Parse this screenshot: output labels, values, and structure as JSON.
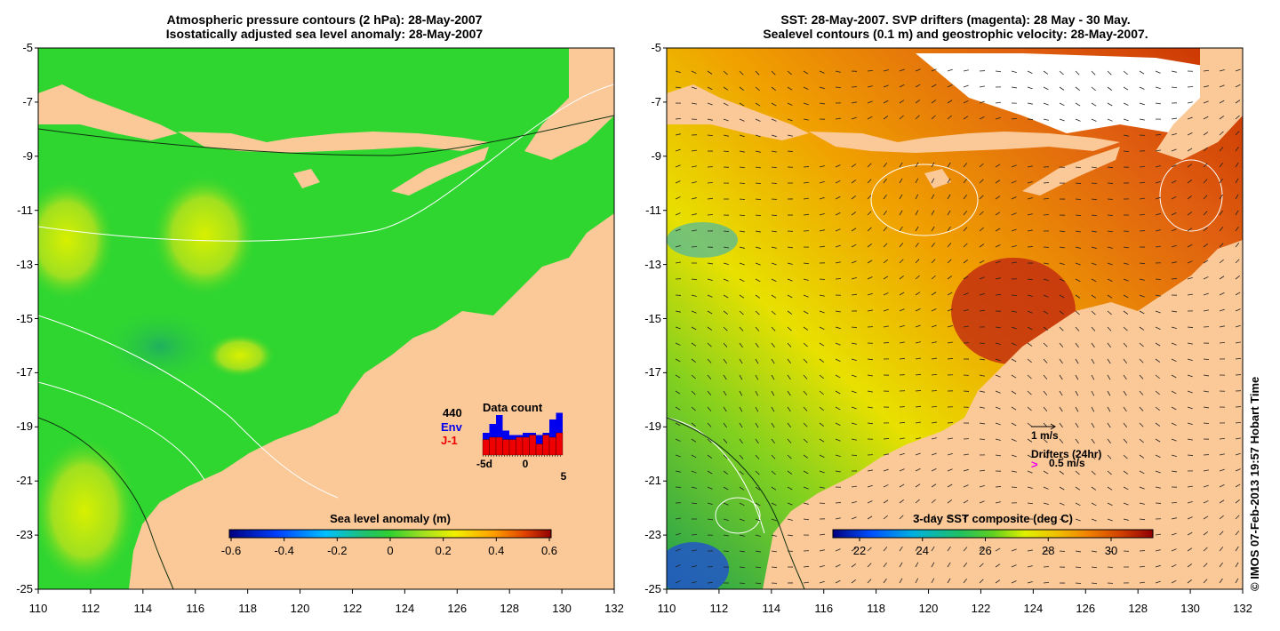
{
  "left_panel": {
    "title_line1": "Atmospheric pressure contours (2 hPa): 28-May-2007",
    "title_line2": "Isostatically adjusted sea level anomaly: 28-May-2007",
    "colorbar_label": "Sea level anomaly (m)",
    "colorbar_ticks": [
      "-0.6",
      "-0.4",
      "-0.2",
      "0",
      "0.2",
      "0.4",
      "0.6"
    ],
    "data_count": {
      "title": "Data count",
      "count": "440",
      "env_label": "Env",
      "j1_label": "J-1",
      "x_ticks": [
        "-5d",
        "0",
        "5"
      ],
      "env_values": [
        1.0,
        1.4,
        1.8,
        1.1,
        0.9,
        0.9,
        1.0,
        1.0,
        0.9,
        1.0,
        1.6,
        1.9
      ],
      "j1_values": [
        0.7,
        0.8,
        0.8,
        0.7,
        0.7,
        0.8,
        0.8,
        0.9,
        0.5,
        0.9,
        0.8,
        1.0
      ]
    }
  },
  "right_panel": {
    "title_line1": "SST: 28-May-2007. SVP drifters (magenta): 28 May - 30 May.",
    "title_line2": "Sealevel contours (0.1 m) and geostrophic velocity: 28-May-2007.",
    "colorbar_label": "3-day SST composite (deg C)",
    "colorbar_ticks": [
      "22",
      "24",
      "26",
      "28",
      "30"
    ],
    "velocity_legend": "1 m/s",
    "drifters_legend": "Drifters (24hr)",
    "drifter_speed": "0.5 m/s",
    "drifter_symbol": ">"
  },
  "x_axis_ticks": [
    "110",
    "112",
    "114",
    "116",
    "118",
    "120",
    "122",
    "124",
    "126",
    "128",
    "130",
    "132"
  ],
  "y_axis_ticks": [
    "-5",
    "-7",
    "-9",
    "-11",
    "-13",
    "-15",
    "-17",
    "-19",
    "-21",
    "-23",
    "-25"
  ],
  "credit": "© IMOS 07-Feb-2013 19:57 Hobart Time",
  "colors": {
    "land": "#fbc898",
    "ocean_left": "#2fd630",
    "ocean_right": "#f0a020",
    "env_bar": "#0000ee",
    "j1_bar": "#ee0000",
    "drifter": "#ee00ee"
  }
}
